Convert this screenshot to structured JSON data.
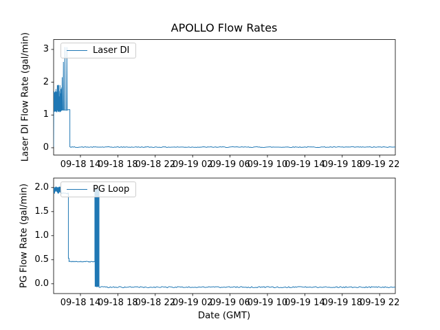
{
  "figure": {
    "title": "APOLLO Flow Rates",
    "xlabel": "Date (GMT)",
    "background": "#ffffff",
    "line_color": "#1f77b4",
    "spine_color": "#000000",
    "legend_border_color": "#cccccc"
  },
  "chart_data": [
    {
      "type": "line",
      "ylabel": "Laser DI Flow Rate (gal/min)",
      "legend_label": "Laser DI",
      "legend_position": "upper left",
      "grid": false,
      "ytick_labels": [
        "0",
        "1",
        "2",
        "3"
      ],
      "ytick_values": [
        0,
        1,
        2,
        3
      ],
      "ylim": [
        -0.222,
        3.302
      ],
      "xtick_labels": [
        "09-18 14",
        "09-18 18",
        "09-18 22",
        "09-19 02",
        "09-19 06",
        "09-19 10",
        "09-19 14",
        "09-19 18",
        "09-19 22"
      ],
      "xtick_hours": [
        0,
        4,
        8,
        12,
        16,
        20,
        24,
        28,
        32
      ],
      "x_unit": "hours relative to 09-18 14:00 GMT",
      "xlim_hours": [
        -2.868,
        33.68
      ],
      "series": [
        {
          "name": "Laser DI",
          "segments": [
            {
              "kind": "move",
              "t": -2.868,
              "v": 0.03
            },
            {
              "kind": "move",
              "t": -2.85,
              "v": 1.3
            },
            {
              "kind": "noiseband",
              "t0": -2.85,
              "t1": -2.0,
              "vmin": 1.08,
              "vmax": 1.93,
              "step": 0.018,
              "mode": "band"
            },
            {
              "kind": "move",
              "t": -2.0,
              "v": 1.15
            },
            {
              "kind": "spike",
              "t": -1.95,
              "base": 1.15,
              "peak": 2.15,
              "w": 0.05
            },
            {
              "kind": "spike",
              "t": -1.82,
              "base": 1.15,
              "peak": 2.62,
              "w": 0.05
            },
            {
              "kind": "spike",
              "t": -1.66,
              "base": 1.15,
              "peak": 3.07,
              "w": 0.05
            },
            {
              "kind": "spike",
              "t": -1.45,
              "base": 1.15,
              "peak": 3.07,
              "w": 0.06
            },
            {
              "kind": "flat",
              "t0": -1.4,
              "t1": -1.13,
              "v": 1.16,
              "noise": 0.005,
              "step": 0.05
            },
            {
              "kind": "move",
              "t": -1.13,
              "v": 0.02
            },
            {
              "kind": "flat",
              "t0": -1.13,
              "t1": 33.68,
              "v": 0.02,
              "noise": 0.012,
              "step": 0.12
            }
          ]
        }
      ]
    },
    {
      "type": "line",
      "ylabel": "PG Flow Rate (gal/min)",
      "legend_label": "PG Loop",
      "legend_position": "upper left",
      "grid": false,
      "ytick_labels": [
        "0.0",
        "0.5",
        "1.0",
        "1.5",
        "2.0"
      ],
      "ytick_values": [
        0,
        0.5,
        1,
        1.5,
        2
      ],
      "ylim": [
        -0.203,
        2.197
      ],
      "xtick_labels": [
        "09-18 14",
        "09-18 18",
        "09-18 22",
        "09-19 02",
        "09-19 06",
        "09-19 10",
        "09-19 14",
        "09-19 18",
        "09-19 22"
      ],
      "xtick_hours": [
        0,
        4,
        8,
        12,
        16,
        20,
        24,
        28,
        32
      ],
      "x_unit": "hours relative to 09-18 14:00 GMT",
      "xlim_hours": [
        -2.868,
        33.68
      ],
      "series": [
        {
          "name": "PG Loop",
          "segments": [
            {
              "kind": "move",
              "t": -2.868,
              "v": 1.95
            },
            {
              "kind": "noiseband",
              "t0": -2.868,
              "t1": -2.05,
              "vmin": 1.87,
              "vmax": 2.03,
              "step": 0.012,
              "mode": "jitter"
            },
            {
              "kind": "flat",
              "t0": -2.05,
              "t1": -1.29,
              "v": 1.88,
              "noise": 0.01,
              "step": 0.06
            },
            {
              "kind": "move",
              "t": -1.29,
              "v": 0.53
            },
            {
              "kind": "flat",
              "t0": -1.29,
              "t1": -1.22,
              "v": 0.53,
              "noise": 0,
              "step": 0.05
            },
            {
              "kind": "flat",
              "t0": -1.22,
              "t1": 1.54,
              "v": 0.46,
              "noise": 0.008,
              "step": 0.06
            },
            {
              "kind": "zigzag",
              "t0": 1.54,
              "t1": 1.73,
              "vlow": -0.06,
              "vhigh": 1.97,
              "cycles": 3
            },
            {
              "kind": "flat",
              "t0": 1.73,
              "t1": 1.8,
              "v": -0.06,
              "noise": 0,
              "step": 0.05
            },
            {
              "kind": "zigzag",
              "t0": 1.8,
              "t1": 1.99,
              "vlow": -0.06,
              "vhigh": 1.97,
              "cycles": 3
            },
            {
              "kind": "flat",
              "t0": 1.99,
              "t1": 33.68,
              "v": -0.07,
              "noise": 0.012,
              "step": 0.12
            }
          ]
        }
      ]
    }
  ]
}
